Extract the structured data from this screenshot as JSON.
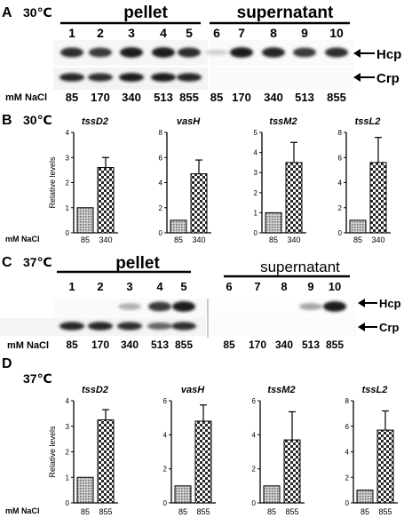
{
  "figure": {
    "panelA": {
      "letter": "A",
      "temp": "30℃",
      "pellet_label": "pellet",
      "supernatant_label": "supernatant",
      "lanes": [
        "1",
        "2",
        "3",
        "4",
        "5",
        "6",
        "7",
        "8",
        "9",
        "10"
      ],
      "hcp_label": "Hcp",
      "crp_label": "Crp",
      "nacl_label": "mM NaCl",
      "nacl": [
        "85",
        "170",
        "340",
        "513",
        "855",
        "85",
        "170",
        "340",
        "513",
        "855"
      ],
      "hcp_intensity": [
        0.85,
        0.8,
        0.95,
        0.95,
        0.85,
        0.1,
        0.95,
        0.9,
        0.8,
        0.85
      ],
      "crp_intensity": [
        0.9,
        0.85,
        0.95,
        0.95,
        0.9,
        0,
        0,
        0,
        0,
        0
      ]
    },
    "panelC": {
      "letter": "C",
      "temp": "37℃",
      "pellet_label": "pellet",
      "supernatant_label": "supernatant",
      "lanes": [
        "1",
        "2",
        "3",
        "4",
        "5",
        "6",
        "7",
        "8",
        "9",
        "10"
      ],
      "hcp_label": "Hcp",
      "crp_label": "Crp",
      "nacl_label": "mM NaCl",
      "nacl": [
        "85",
        "170",
        "340",
        "513",
        "855",
        "85",
        "170",
        "340",
        "513",
        "855"
      ],
      "hcp_intensity": [
        0,
        0,
        0.25,
        0.8,
        0.95,
        0,
        0,
        0,
        0.3,
        0.95
      ],
      "crp_intensity": [
        0.9,
        0.9,
        0.85,
        0.6,
        0.85,
        0,
        0,
        0,
        0,
        0
      ]
    }
  },
  "chart_data": [
    {
      "panel": "B",
      "temp": "30℃",
      "type": "bar",
      "ylabel": "Relative levels",
      "xprefix": "mM NaCl",
      "charts": [
        {
          "title": "tssD2",
          "categories": [
            "85",
            "340"
          ],
          "values": [
            1,
            2.6
          ],
          "errors": [
            0,
            0.4
          ],
          "ylim": [
            0,
            4
          ],
          "ticks": [
            0,
            1,
            2,
            3,
            4
          ]
        },
        {
          "title": "vasH",
          "categories": [
            "85",
            "340"
          ],
          "values": [
            1,
            4.7
          ],
          "errors": [
            0,
            1.1
          ],
          "ylim": [
            0,
            8
          ],
          "ticks": [
            0,
            2,
            4,
            6,
            8
          ]
        },
        {
          "title": "tssM2",
          "categories": [
            "85",
            "340"
          ],
          "values": [
            1,
            3.5
          ],
          "errors": [
            0,
            1.0
          ],
          "ylim": [
            0,
            5
          ],
          "ticks": [
            0,
            1,
            2,
            3,
            4,
            5
          ]
        },
        {
          "title": "tssL2",
          "categories": [
            "85",
            "340"
          ],
          "values": [
            1,
            5.6
          ],
          "errors": [
            0,
            2.0
          ],
          "ylim": [
            0,
            8
          ],
          "ticks": [
            0,
            2,
            4,
            6,
            8
          ]
        }
      ]
    },
    {
      "panel": "D",
      "temp": "37℃",
      "type": "bar",
      "ylabel": "Relative levels",
      "xprefix": "mM NaCl",
      "charts": [
        {
          "title": "tssD2",
          "categories": [
            "85",
            "855"
          ],
          "values": [
            1,
            3.25
          ],
          "errors": [
            0,
            0.4
          ],
          "ylim": [
            0,
            4
          ],
          "ticks": [
            0,
            1,
            2,
            3,
            4
          ]
        },
        {
          "title": "vasH",
          "categories": [
            "85",
            "855"
          ],
          "values": [
            1,
            4.8
          ],
          "errors": [
            0,
            0.95
          ],
          "ylim": [
            0,
            6
          ],
          "ticks": [
            0,
            2,
            4,
            6
          ]
        },
        {
          "title": "tssM2",
          "categories": [
            "85",
            "855"
          ],
          "values": [
            1,
            3.7
          ],
          "errors": [
            0,
            1.65
          ],
          "ylim": [
            0,
            6
          ],
          "ticks": [
            0,
            2,
            4,
            6
          ]
        },
        {
          "title": "tssL2",
          "categories": [
            "85",
            "855"
          ],
          "values": [
            1,
            5.7
          ],
          "errors": [
            0,
            1.5
          ],
          "ylim": [
            0,
            8
          ],
          "ticks": [
            0,
            2,
            4,
            6,
            8
          ]
        }
      ]
    }
  ]
}
